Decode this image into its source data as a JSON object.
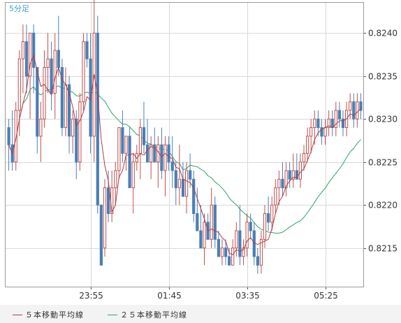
{
  "chart_data": {
    "type": "candlestick",
    "timeframe_label": "5分足",
    "x_tick_labels": [
      "23:55",
      "01:45",
      "03:35",
      "05:25"
    ],
    "y_ticks": [
      "0.8215",
      "0.8220",
      "0.8225",
      "0.8230",
      "0.8235",
      "0.8240"
    ],
    "ylim": [
      0.82105,
      0.82436
    ],
    "grid": true,
    "colors": {
      "up": "#c0504d",
      "down": "#4a7fb5",
      "ma5": "#b03a48",
      "ma25": "#2ea36a",
      "grid": "#d9d9d9",
      "axis": "#555555"
    },
    "series": [
      {
        "name": "５本移動平均線",
        "color": "#b03a48"
      },
      {
        "name": "２５本移動平均線",
        "color": "#2ea36a"
      }
    ],
    "candles": [
      [
        0.8229,
        0.823,
        0.8224,
        0.8227
      ],
      [
        0.8227,
        0.8231,
        0.8224,
        0.8225
      ],
      [
        0.8225,
        0.8232,
        0.8224,
        0.8231
      ],
      [
        0.8231,
        0.8238,
        0.8228,
        0.8237
      ],
      [
        0.8237,
        0.8241,
        0.8233,
        0.8239
      ],
      [
        0.8239,
        0.8241,
        0.8233,
        0.8235
      ],
      [
        0.8235,
        0.824,
        0.823,
        0.824
      ],
      [
        0.824,
        0.8241,
        0.8233,
        0.8236
      ],
      [
        0.8236,
        0.8236,
        0.8226,
        0.8228
      ],
      [
        0.8228,
        0.8232,
        0.8225,
        0.823
      ],
      [
        0.823,
        0.8238,
        0.8229,
        0.8236
      ],
      [
        0.8236,
        0.824,
        0.8233,
        0.8237
      ],
      [
        0.8237,
        0.8239,
        0.8231,
        0.8233
      ],
      [
        0.8233,
        0.824,
        0.823,
        0.8238
      ],
      [
        0.8238,
        0.8242,
        0.8235,
        0.8236
      ],
      [
        0.8236,
        0.8237,
        0.8228,
        0.8229
      ],
      [
        0.8229,
        0.8236,
        0.8228,
        0.8234
      ],
      [
        0.8234,
        0.8235,
        0.8226,
        0.8228
      ],
      [
        0.8228,
        0.8231,
        0.8226,
        0.823
      ],
      [
        0.823,
        0.8231,
        0.8223,
        0.8225
      ],
      [
        0.8225,
        0.8233,
        0.8224,
        0.8232
      ],
      [
        0.8232,
        0.824,
        0.8231,
        0.8239
      ],
      [
        0.8239,
        0.824,
        0.8236,
        0.8237
      ],
      [
        0.8237,
        0.824,
        0.8226,
        0.8228
      ],
      [
        0.8228,
        0.8244,
        0.8225,
        0.824
      ],
      [
        0.824,
        0.8242,
        0.8219,
        0.822
      ],
      [
        0.822,
        0.822,
        0.8213,
        0.8213
      ],
      [
        0.8215,
        0.8223,
        0.8214,
        0.8222
      ],
      [
        0.8222,
        0.8224,
        0.8218,
        0.8219
      ],
      [
        0.8219,
        0.8224,
        0.8218,
        0.8222
      ],
      [
        0.8222,
        0.8225,
        0.822,
        0.8224
      ],
      [
        0.8224,
        0.8229,
        0.8223,
        0.8229
      ],
      [
        0.8229,
        0.8231,
        0.8225,
        0.8226
      ],
      [
        0.8226,
        0.8228,
        0.8224,
        0.8228
      ],
      [
        0.8228,
        0.8229,
        0.8222,
        0.8222
      ],
      [
        0.8222,
        0.8226,
        0.8219,
        0.8225
      ],
      [
        0.8225,
        0.8227,
        0.8224,
        0.8226
      ],
      [
        0.8226,
        0.823,
        0.8223,
        0.8229
      ],
      [
        0.8229,
        0.8232,
        0.8226,
        0.8227
      ],
      [
        0.8227,
        0.823,
        0.8225,
        0.8225
      ],
      [
        0.8225,
        0.8228,
        0.8223,
        0.8227
      ],
      [
        0.8227,
        0.8229,
        0.8225,
        0.8225
      ],
      [
        0.8225,
        0.8228,
        0.8222,
        0.8227
      ],
      [
        0.8227,
        0.8229,
        0.8223,
        0.8224
      ],
      [
        0.8224,
        0.8228,
        0.8221,
        0.8227
      ],
      [
        0.8227,
        0.8228,
        0.8224,
        0.8225
      ],
      [
        0.8225,
        0.8228,
        0.8222,
        0.8224
      ],
      [
        0.8224,
        0.8225,
        0.822,
        0.8222
      ],
      [
        0.8222,
        0.8227,
        0.822,
        0.8223
      ],
      [
        0.8223,
        0.8225,
        0.8221,
        0.8221
      ],
      [
        0.8221,
        0.8225,
        0.8219,
        0.8224
      ],
      [
        0.8224,
        0.8226,
        0.8222,
        0.8223
      ],
      [
        0.8223,
        0.8224,
        0.8218,
        0.8219
      ],
      [
        0.8219,
        0.8222,
        0.8217,
        0.8217
      ],
      [
        0.8217,
        0.822,
        0.8215,
        0.8215
      ],
      [
        0.8215,
        0.8219,
        0.8213,
        0.8218
      ],
      [
        0.8218,
        0.8219,
        0.8216,
        0.8216
      ],
      [
        0.8216,
        0.8222,
        0.8215,
        0.822
      ],
      [
        0.822,
        0.8221,
        0.8215,
        0.8216
      ],
      [
        0.8216,
        0.8217,
        0.8214,
        0.8214
      ],
      [
        0.8214,
        0.8216,
        0.8213,
        0.8215
      ],
      [
        0.8215,
        0.8216,
        0.8213,
        0.8214
      ],
      [
        0.8214,
        0.8215,
        0.8213,
        0.8213
      ],
      [
        0.8213,
        0.8216,
        0.8213,
        0.8215
      ],
      [
        0.8215,
        0.8218,
        0.8214,
        0.8217
      ],
      [
        0.8217,
        0.822,
        0.8213,
        0.8214
      ],
      [
        0.8214,
        0.8216,
        0.8213,
        0.8215
      ],
      [
        0.8215,
        0.8219,
        0.8214,
        0.8218
      ],
      [
        0.8218,
        0.8219,
        0.8216,
        0.8217
      ],
      [
        0.8217,
        0.8218,
        0.8213,
        0.8214
      ],
      [
        0.8214,
        0.8215,
        0.8212,
        0.8213
      ],
      [
        0.8213,
        0.8217,
        0.8212,
        0.8216
      ],
      [
        0.8216,
        0.822,
        0.8215,
        0.8219
      ],
      [
        0.8219,
        0.8221,
        0.8217,
        0.8218
      ],
      [
        0.8218,
        0.8221,
        0.8217,
        0.822
      ],
      [
        0.822,
        0.8223,
        0.8219,
        0.8222
      ],
      [
        0.8222,
        0.8224,
        0.822,
        0.8223
      ],
      [
        0.8223,
        0.8225,
        0.8221,
        0.8222
      ],
      [
        0.8222,
        0.8225,
        0.8221,
        0.8224
      ],
      [
        0.8224,
        0.8225,
        0.8222,
        0.8223
      ],
      [
        0.8223,
        0.8226,
        0.8222,
        0.8224
      ],
      [
        0.8224,
        0.8226,
        0.8223,
        0.8223
      ],
      [
        0.8223,
        0.8226,
        0.8222,
        0.8225
      ],
      [
        0.8225,
        0.8227,
        0.8224,
        0.8226
      ],
      [
        0.8226,
        0.8229,
        0.8225,
        0.8228
      ],
      [
        0.8228,
        0.823,
        0.8226,
        0.8229
      ],
      [
        0.8229,
        0.8231,
        0.8227,
        0.823
      ],
      [
        0.823,
        0.8231,
        0.8228,
        0.8229
      ],
      [
        0.8229,
        0.823,
        0.8227,
        0.8228
      ],
      [
        0.8228,
        0.823,
        0.8227,
        0.8229
      ],
      [
        0.8229,
        0.8231,
        0.8228,
        0.823
      ],
      [
        0.823,
        0.8231,
        0.8228,
        0.8229
      ],
      [
        0.8229,
        0.8232,
        0.8228,
        0.8231
      ],
      [
        0.8231,
        0.8232,
        0.8229,
        0.823
      ],
      [
        0.823,
        0.8231,
        0.8228,
        0.8229
      ],
      [
        0.8229,
        0.8232,
        0.8228,
        0.8231
      ],
      [
        0.8231,
        0.8233,
        0.823,
        0.8232
      ],
      [
        0.8232,
        0.8233,
        0.8229,
        0.823
      ],
      [
        0.823,
        0.8233,
        0.8229,
        0.8232
      ],
      [
        0.8232,
        0.8233,
        0.823,
        0.8231
      ]
    ]
  }
}
